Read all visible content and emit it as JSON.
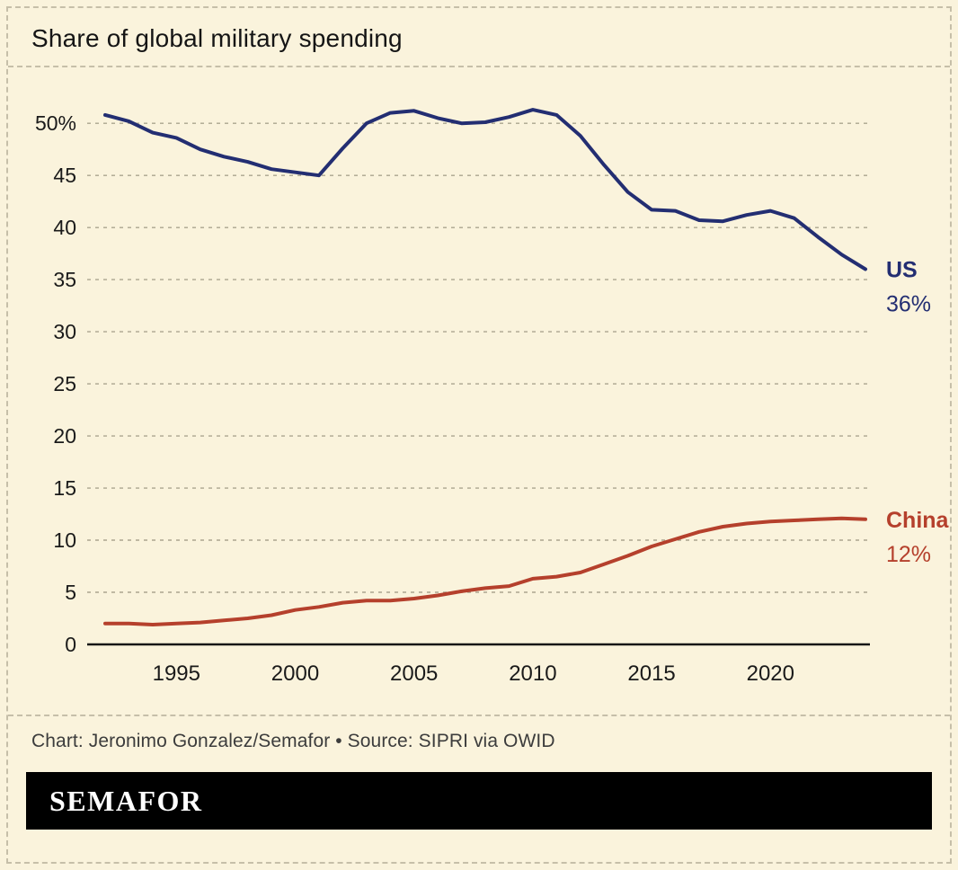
{
  "header": {
    "title": "Share of global military spending"
  },
  "footer": {
    "credit": "Chart: Jeronimo Gonzalez/Semafor • Source: SIPRI via OWID",
    "logo": "SEMAFOR"
  },
  "colors": {
    "background": "#faf3dc",
    "border": "#c6bfa9",
    "grid": "#aba48e",
    "axis": "#161616",
    "text": "#1a1a1a",
    "us": "#232e72",
    "china": "#b5402c"
  },
  "chart_data": {
    "type": "line",
    "title": "Share of global military spending",
    "x": [
      1992,
      1993,
      1994,
      1995,
      1996,
      1997,
      1998,
      1999,
      2000,
      2001,
      2002,
      2003,
      2004,
      2005,
      2006,
      2007,
      2008,
      2009,
      2010,
      2011,
      2012,
      2013,
      2014,
      2015,
      2016,
      2017,
      2018,
      2019,
      2020,
      2021,
      2022,
      2023,
      2024
    ],
    "series": [
      {
        "name": "US",
        "color": "#232e72",
        "end_label": "US",
        "end_value_label": "36%",
        "values": [
          50.8,
          50.2,
          49.1,
          48.6,
          47.5,
          46.8,
          46.3,
          45.6,
          45.3,
          45.0,
          47.6,
          50.0,
          51.0,
          51.2,
          50.5,
          50.0,
          50.1,
          50.6,
          51.3,
          50.8,
          48.8,
          46.0,
          43.4,
          41.7,
          41.6,
          40.7,
          40.6,
          41.2,
          41.6,
          40.9,
          39.1,
          37.4,
          36.0
        ]
      },
      {
        "name": "China",
        "color": "#b5402c",
        "end_label": "China",
        "end_value_label": "12%",
        "values": [
          2.0,
          2.0,
          1.9,
          2.0,
          2.1,
          2.3,
          2.5,
          2.8,
          3.3,
          3.6,
          4.0,
          4.2,
          4.2,
          4.4,
          4.7,
          5.1,
          5.4,
          5.6,
          6.3,
          6.5,
          6.9,
          7.7,
          8.5,
          9.4,
          10.1,
          10.8,
          11.3,
          11.6,
          11.8,
          11.9,
          12.0,
          12.1,
          12.0
        ]
      }
    ],
    "yticks": [
      50,
      45,
      40,
      35,
      30,
      25,
      20,
      15,
      10,
      5,
      0
    ],
    "ytick_labels": [
      "50%",
      "45",
      "40",
      "35",
      "30",
      "25",
      "20",
      "15",
      "10",
      "5",
      "0"
    ],
    "xticks": [
      1995,
      2000,
      2005,
      2010,
      2015,
      2020
    ],
    "xlim": [
      1992,
      2024
    ],
    "ylim": [
      0,
      52
    ],
    "grid": "horizontal-dashed",
    "legend": "end-of-line-labels"
  }
}
